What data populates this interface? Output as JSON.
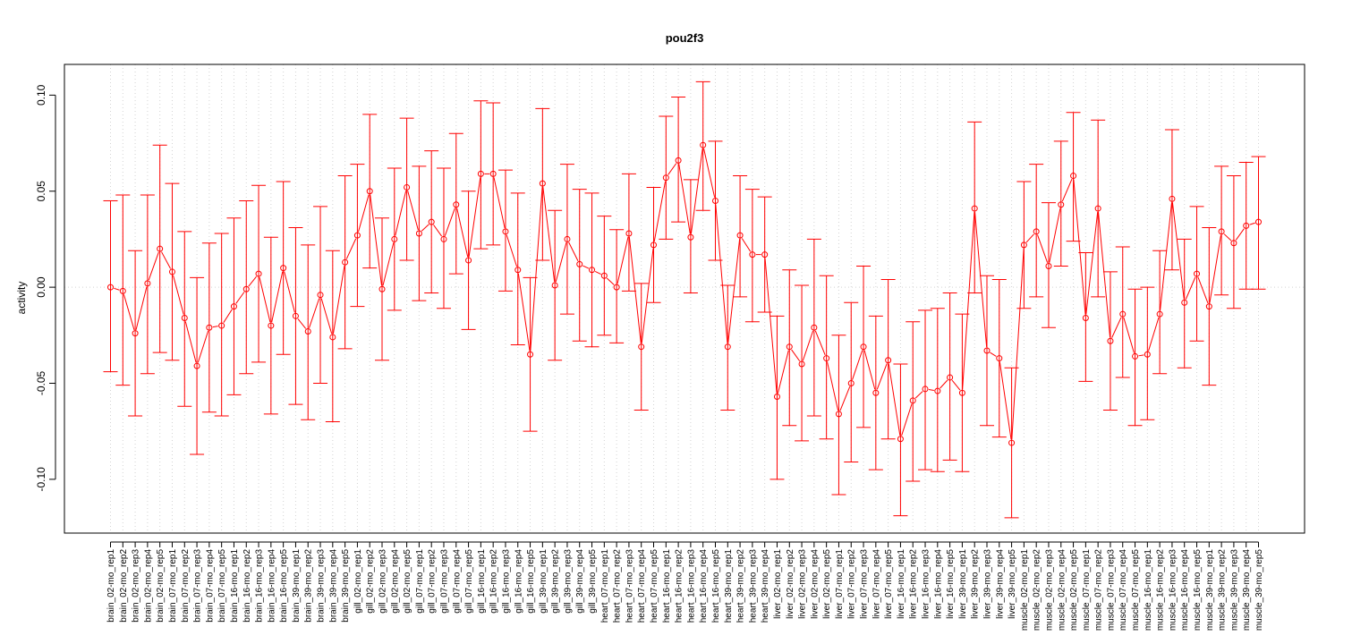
{
  "chart_data": {
    "type": "line",
    "title": "pou2f3",
    "xlabel": "",
    "ylabel": "activity",
    "ylim": [
      -0.128,
      0.116
    ],
    "yticks": [
      -0.1,
      -0.05,
      0.0,
      0.05,
      0.1
    ],
    "ytick_labels": [
      "-0.10",
      "-0.05",
      "0.00",
      "0.05",
      "0.10"
    ],
    "grid": true,
    "error_bars": true,
    "color": "#ff0000",
    "categories": [
      "brain_02-mo_rep1",
      "brain_02-mo_rep2",
      "brain_02-mo_rep3",
      "brain_02-mo_rep4",
      "brain_02-mo_rep5",
      "brain_07-mo_rep1",
      "brain_07-mo_rep2",
      "brain_07-mo_rep3",
      "brain_07-mo_rep4",
      "brain_07-mo_rep5",
      "brain_16-mo_rep1",
      "brain_16-mo_rep2",
      "brain_16-mo_rep3",
      "brain_16-mo_rep4",
      "brain_16-mo_rep5",
      "brain_39-mo_rep1",
      "brain_39-mo_rep2",
      "brain_39-mo_rep3",
      "brain_39-mo_rep4",
      "brain_39-mo_rep5",
      "gill_02-mo_rep1",
      "gill_02-mo_rep2",
      "gill_02-mo_rep3",
      "gill_02-mo_rep4",
      "gill_02-mo_rep5",
      "gill_07-mo_rep1",
      "gill_07-mo_rep2",
      "gill_07-mo_rep3",
      "gill_07-mo_rep4",
      "gill_07-mo_rep5",
      "gill_16-mo_rep1",
      "gill_16-mo_rep2",
      "gill_16-mo_rep3",
      "gill_16-mo_rep4",
      "gill_16-mo_rep5",
      "gill_39-mo_rep1",
      "gill_39-mo_rep2",
      "gill_39-mo_rep3",
      "gill_39-mo_rep4",
      "gill_39-mo_rep5",
      "heart_07-mo_rep1",
      "heart_07-mo_rep2",
      "heart_07-mo_rep3",
      "heart_07-mo_rep4",
      "heart_07-mo_rep5",
      "heart_16-mo_rep1",
      "heart_16-mo_rep2",
      "heart_16-mo_rep3",
      "heart_16-mo_rep4",
      "heart_16-mo_rep5",
      "heart_39-mo_rep1",
      "heart_39-mo_rep2",
      "heart_39-mo_rep3",
      "heart_39-mo_rep4",
      "liver_02-mo_rep1",
      "liver_02-mo_rep2",
      "liver_02-mo_rep3",
      "liver_02-mo_rep4",
      "liver_02-mo_rep5",
      "liver_07-mo_rep1",
      "liver_07-mo_rep2",
      "liver_07-mo_rep3",
      "liver_07-mo_rep4",
      "liver_07-mo_rep5",
      "liver_16-mo_rep1",
      "liver_16-mo_rep2",
      "liver_16-mo_rep3",
      "liver_16-mo_rep4",
      "liver_16-mo_rep5",
      "liver_39-mo_rep1",
      "liver_39-mo_rep2",
      "liver_39-mo_rep3",
      "liver_39-mo_rep4",
      "liver_39-mo_rep5",
      "muscle_02-mo_rep1",
      "muscle_02-mo_rep2",
      "muscle_02-mo_rep3",
      "muscle_02-mo_rep4",
      "muscle_02-mo_rep5",
      "muscle_07-mo_rep1",
      "muscle_07-mo_rep2",
      "muscle_07-mo_rep3",
      "muscle_07-mo_rep4",
      "muscle_07-mo_rep5",
      "muscle_16-mo_rep1",
      "muscle_16-mo_rep2",
      "muscle_16-mo_rep3",
      "muscle_16-mo_rep4",
      "muscle_16-mo_rep5",
      "muscle_39-mo_rep1",
      "muscle_39-mo_rep2",
      "muscle_39-mo_rep3",
      "muscle_39-mo_rep4",
      "muscle_39-mo_rep5"
    ],
    "values": [
      0.0,
      -0.002,
      -0.024,
      0.002,
      0.02,
      0.008,
      -0.016,
      -0.041,
      -0.021,
      -0.02,
      -0.01,
      -0.001,
      0.007,
      -0.02,
      0.01,
      -0.015,
      -0.023,
      -0.004,
      -0.026,
      0.013,
      0.027,
      0.05,
      -0.001,
      0.025,
      0.052,
      0.028,
      0.034,
      0.025,
      0.043,
      0.014,
      0.059,
      0.059,
      0.029,
      0.009,
      -0.035,
      0.054,
      0.001,
      0.025,
      0.012,
      0.009,
      0.006,
      0.0,
      0.028,
      -0.031,
      0.022,
      0.057,
      0.066,
      0.026,
      0.074,
      0.045,
      -0.031,
      0.027,
      0.017,
      0.017,
      -0.057,
      -0.031,
      -0.04,
      -0.021,
      -0.037,
      -0.066,
      -0.05,
      -0.031,
      -0.055,
      -0.038,
      -0.079,
      -0.059,
      -0.053,
      -0.054,
      -0.047,
      -0.055,
      0.041,
      -0.033,
      -0.037,
      -0.081,
      0.022,
      0.029,
      0.011,
      0.043,
      0.058,
      -0.016,
      0.041,
      -0.028,
      -0.014,
      -0.036,
      -0.035,
      -0.014,
      0.046,
      -0.008,
      0.007,
      -0.01,
      0.029,
      0.023,
      0.032,
      0.034
    ],
    "error_upper": [
      0.045,
      0.048,
      0.019,
      0.048,
      0.074,
      0.054,
      0.029,
      0.005,
      0.023,
      0.028,
      0.036,
      0.045,
      0.053,
      0.026,
      0.055,
      0.031,
      0.022,
      0.042,
      0.019,
      0.058,
      0.064,
      0.09,
      0.036,
      0.062,
      0.088,
      0.063,
      0.071,
      0.062,
      0.08,
      0.05,
      0.097,
      0.096,
      0.061,
      0.049,
      0.005,
      0.093,
      0.04,
      0.064,
      0.051,
      0.049,
      0.037,
      0.03,
      0.059,
      0.002,
      0.052,
      0.089,
      0.099,
      0.056,
      0.107,
      0.076,
      0.001,
      0.058,
      0.051,
      0.047,
      -0.015,
      0.009,
      0.001,
      0.025,
      0.006,
      -0.025,
      -0.008,
      0.011,
      -0.015,
      0.004,
      -0.04,
      -0.018,
      -0.012,
      -0.011,
      -0.003,
      -0.014,
      0.086,
      0.006,
      0.004,
      -0.042,
      0.055,
      0.064,
      0.044,
      0.076,
      0.091,
      0.018,
      0.087,
      0.008,
      0.021,
      -0.001,
      0.0,
      0.019,
      0.082,
      0.025,
      0.042,
      0.031,
      0.063,
      0.058,
      0.065,
      0.068
    ],
    "error_lower": [
      -0.044,
      -0.051,
      -0.067,
      -0.045,
      -0.034,
      -0.038,
      -0.062,
      -0.087,
      -0.065,
      -0.067,
      -0.056,
      -0.045,
      -0.039,
      -0.066,
      -0.035,
      -0.061,
      -0.069,
      -0.05,
      -0.07,
      -0.032,
      -0.01,
      0.01,
      -0.038,
      -0.012,
      0.014,
      -0.007,
      -0.003,
      -0.011,
      0.007,
      -0.022,
      0.02,
      0.022,
      -0.002,
      -0.03,
      -0.075,
      0.014,
      -0.038,
      -0.014,
      -0.028,
      -0.031,
      -0.025,
      -0.029,
      -0.002,
      -0.064,
      -0.008,
      0.025,
      0.034,
      -0.003,
      0.04,
      0.014,
      -0.064,
      -0.005,
      -0.018,
      -0.013,
      -0.1,
      -0.072,
      -0.08,
      -0.067,
      -0.079,
      -0.108,
      -0.091,
      -0.073,
      -0.095,
      -0.079,
      -0.119,
      -0.101,
      -0.095,
      -0.096,
      -0.09,
      -0.096,
      -0.003,
      -0.072,
      -0.078,
      -0.12,
      -0.011,
      -0.005,
      -0.021,
      0.011,
      0.024,
      -0.049,
      -0.005,
      -0.064,
      -0.047,
      -0.072,
      -0.069,
      -0.045,
      0.009,
      -0.042,
      -0.028,
      -0.051,
      -0.004,
      -0.011,
      -0.001,
      -0.001
    ]
  }
}
